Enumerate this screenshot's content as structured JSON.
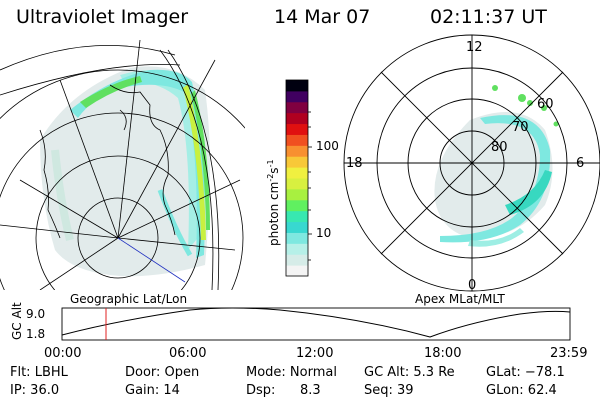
{
  "header": {
    "instrument": "Ultraviolet Imager",
    "date": "14 Mar 07",
    "time": "02:11:37 UT"
  },
  "left_panel": {
    "caption": "Geographic Lat/Lon"
  },
  "right_panel": {
    "caption": "Apex MLat/MLT",
    "mlt_labels": [
      "12",
      "18",
      "6",
      "0"
    ],
    "mlat_labels": [
      "60",
      "70",
      "80"
    ]
  },
  "colorbar": {
    "unit_label": "photon cm",
    "unit_exp1": "-2",
    "unit_s": "s",
    "unit_exp2": "-1",
    "tick_labels": [
      "100",
      "10"
    ],
    "colors": [
      "#f4f4f4",
      "#d6ece8",
      "#b6f0e8",
      "#7ee8e0",
      "#38d8d0",
      "#38e8b0",
      "#60f060",
      "#a8f040",
      "#d8f040",
      "#f0f040",
      "#f8c838",
      "#f89030",
      "#f05020",
      "#e01010",
      "#b00020",
      "#800040",
      "#400060",
      "#000010"
    ]
  },
  "timeline": {
    "y_axis_label": "GC Alt",
    "y_ticks": [
      "9.0",
      "1.8"
    ],
    "x_ticks": [
      "00:00",
      "06:00",
      "12:00",
      "18:00",
      "23:59"
    ],
    "marker_color": "#e02020"
  },
  "info": {
    "filter": "Flt: LBHL",
    "door": "Door: Open",
    "mode": "Mode: Normal",
    "gc_alt": "GC Alt: 5.3 Re",
    "glat": "GLat: −78.1",
    "ip": "IP: 36.0",
    "gain": "Gain: 14",
    "dsp_label": "Dsp:",
    "dsp_value": "8.3",
    "seq": "Seq: 39",
    "glon": "GLon:  62.4"
  },
  "colors": {
    "aurora_teal": "#7ee8e0",
    "aurora_green": "#60e860",
    "aurora_yellow": "#e8f040",
    "background_noise": "#dde8e8"
  }
}
